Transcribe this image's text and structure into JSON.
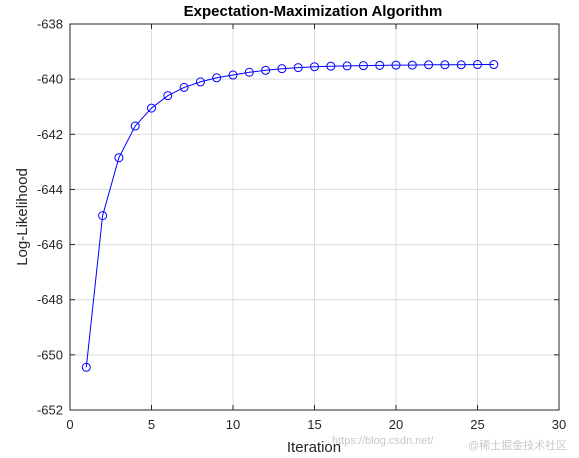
{
  "chart_data": {
    "type": "line",
    "title": "Expectation-Maximization Algorithm",
    "xlabel": "Iteration",
    "ylabel": "Log-Likelihood",
    "xlim": [
      0,
      30
    ],
    "ylim": [
      -652,
      -638
    ],
    "xticks": [
      0,
      5,
      10,
      15,
      20,
      25,
      30
    ],
    "yticks": [
      -652,
      -650,
      -648,
      -646,
      -644,
      -642,
      -640,
      -638
    ],
    "grid": true,
    "marker": "circle",
    "line_color": "#0000ff",
    "series": [
      {
        "x": [
          1,
          2,
          3,
          4,
          5,
          6,
          7,
          8,
          9,
          10,
          11,
          12,
          13,
          14,
          15,
          16,
          17,
          18,
          19,
          20,
          21,
          22,
          23,
          24,
          25,
          26
        ],
        "values": [
          -650.45,
          -644.95,
          -642.85,
          -641.7,
          -641.05,
          -640.6,
          -640.3,
          -640.1,
          -639.95,
          -639.85,
          -639.75,
          -639.68,
          -639.62,
          -639.58,
          -639.55,
          -639.53,
          -639.52,
          -639.51,
          -639.5,
          -639.49,
          -639.49,
          -639.48,
          -639.48,
          -639.48,
          -639.47,
          -639.47
        ]
      }
    ]
  },
  "watermark": {
    "text1": "https://blog.csdn.net/",
    "text2": "@稀土掘金技术社区"
  },
  "colors": {
    "grid": "#dcdcdc",
    "axis": "#262626",
    "line": "#0000ff"
  }
}
